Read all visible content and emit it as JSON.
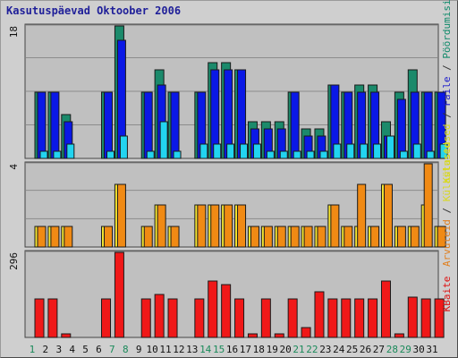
{
  "title": "Kasutuspäevad Oktoober 2006",
  "chart_data": [
    {
      "type": "bar",
      "panel": "top",
      "title": "Kasutuspäevad Oktoober 2006",
      "ylabel_parts": [
        {
          "text": "Külastused",
          "color": "#d8d820"
        },
        {
          "text": " / ",
          "color": "#333333"
        },
        {
          "text": "Faile",
          "color": "#1a1acc"
        },
        {
          "text": " / ",
          "color": "#333333"
        },
        {
          "text": "Pöördumisi",
          "color": "#0f8a6a"
        }
      ],
      "y_tick_label": "18",
      "ylim": [
        0,
        18
      ],
      "grid": true,
      "series": [
        {
          "name": "Pöördumisi",
          "color": "#1b8a6b",
          "values": [
            9,
            9,
            6,
            0,
            0,
            9,
            18,
            0,
            9,
            12,
            9,
            0,
            9,
            13,
            13,
            12,
            5,
            5,
            5,
            9,
            4,
            4,
            10,
            9,
            10,
            10,
            5,
            9,
            12,
            9,
            9
          ]
        },
        {
          "name": "Faile",
          "color": "#0a18e6",
          "values": [
            9,
            9,
            5,
            0,
            0,
            9,
            16,
            0,
            9,
            10,
            9,
            0,
            9,
            12,
            12,
            12,
            4,
            4,
            4,
            9,
            3,
            3,
            10,
            9,
            9,
            9,
            3,
            8,
            9,
            9,
            9
          ]
        },
        {
          "name": "Külastused",
          "color": "#22d4f0",
          "values": [
            1,
            1,
            2,
            0,
            0,
            1,
            3,
            0,
            1,
            5,
            1,
            0,
            2,
            2,
            2,
            2,
            2,
            1,
            1,
            1,
            1,
            1,
            2,
            2,
            2,
            2,
            3,
            1,
            2,
            1,
            2
          ]
        }
      ]
    },
    {
      "type": "bar",
      "panel": "middle",
      "ylabel_parts": [
        {
          "text": "Arvuteid",
          "color": "#e08020"
        },
        {
          "text": " / ",
          "color": "#333333"
        },
        {
          "text": "Külastused",
          "color": "#d8d820"
        }
      ],
      "y_tick_label": "4",
      "ylim": [
        0,
        4
      ],
      "grid": true,
      "series": [
        {
          "name": "Külastused",
          "color": "#f5e630",
          "values": [
            1,
            1,
            1,
            0,
            0,
            1,
            3,
            0,
            1,
            2,
            1,
            0,
            2,
            2,
            2,
            2,
            1,
            1,
            1,
            1,
            1,
            1,
            2,
            1,
            1,
            1,
            3,
            1,
            1,
            2,
            1
          ]
        },
        {
          "name": "Arvuteid",
          "color": "#f08a14",
          "values": [
            1,
            1,
            1,
            0,
            0,
            1,
            3,
            0,
            1,
            2,
            1,
            0,
            2,
            2,
            2,
            2,
            1,
            1,
            1,
            1,
            1,
            1,
            2,
            1,
            3,
            1,
            3,
            1,
            1,
            4,
            1
          ]
        }
      ]
    },
    {
      "type": "bar",
      "panel": "bottom",
      "ylabel_parts": [
        {
          "text": "KBaite",
          "color": "#dd1111"
        }
      ],
      "y_tick_label": "296",
      "ylim": [
        0,
        296
      ],
      "grid": false,
      "series": [
        {
          "name": "KBaite",
          "color": "#f01818",
          "values": [
            135,
            135,
            12,
            0,
            0,
            135,
            296,
            0,
            135,
            148,
            135,
            0,
            135,
            195,
            185,
            135,
            12,
            135,
            12,
            135,
            35,
            160,
            135,
            135,
            135,
            135,
            195,
            12,
            140,
            135,
            135
          ]
        }
      ]
    }
  ],
  "x_tick_labels": [
    "1",
    "2",
    "3",
    "4",
    "5",
    "6",
    "7",
    "8",
    "9",
    "10",
    "11",
    "12",
    "13",
    "14",
    "15",
    "16",
    "17",
    "18",
    "19",
    "20",
    "21",
    "22",
    "23",
    "24",
    "25",
    "26",
    "27",
    "28",
    "29",
    "30",
    "31"
  ],
  "weekend_days": [
    1,
    7,
    8,
    14,
    15,
    21,
    22,
    28,
    29
  ],
  "colors": {
    "weekday_tick": "#111111",
    "weekend_tick": "#1a8a5a"
  }
}
